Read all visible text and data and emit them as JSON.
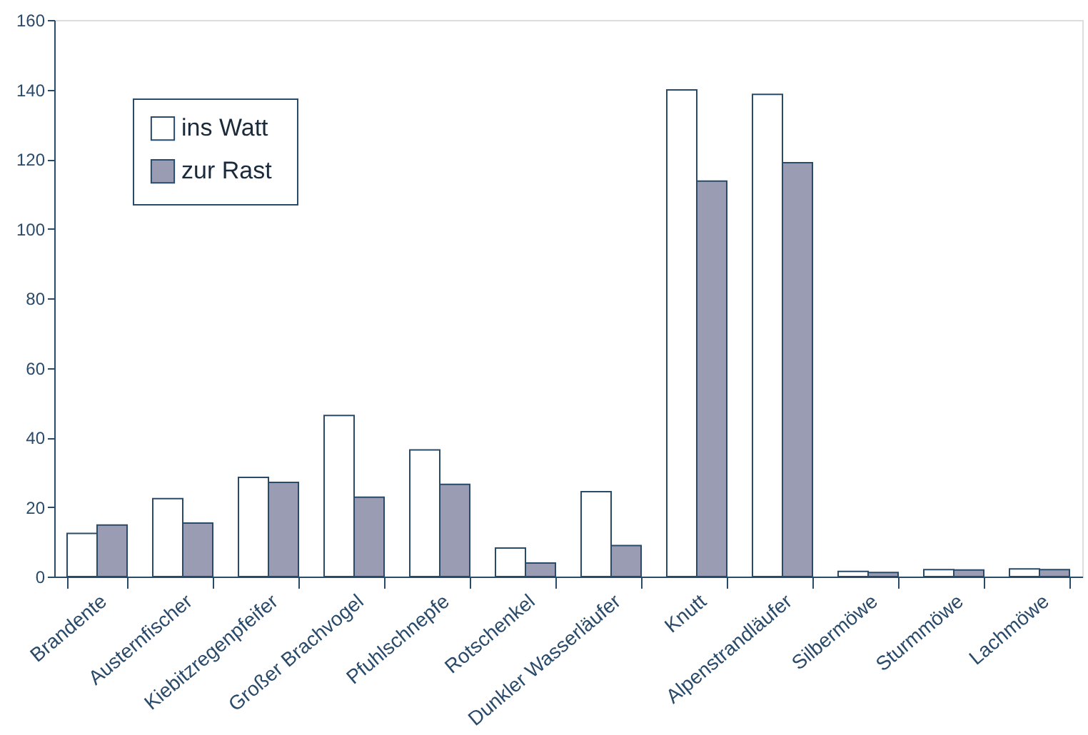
{
  "chart_data": {
    "type": "bar",
    "categories": [
      "Brandente",
      "Austernfischer",
      "Kiebitzregenpfeifer",
      "Großer Brachvogel",
      "Pfuhlschnepfe",
      "Rotschenkel",
      "Dunkler Wasserläufer",
      "Knutt",
      "Alpenstrandläufer",
      "Silbermöwe",
      "Sturmmöwe",
      "Lachmöwe"
    ],
    "series": [
      {
        "name": "ins Watt",
        "color": "#ffffff",
        "values": [
          12.4,
          22.4,
          28.5,
          46.3,
          36.4,
          8.2,
          24.4,
          139.9,
          138.6,
          1.5,
          2,
          2.2
        ]
      },
      {
        "name": "zur  Rast",
        "color": "#9a9cb4",
        "values": [
          14.8,
          15.4,
          27.1,
          22.8,
          26.5,
          3.9,
          8.9,
          113.7,
          119,
          1.2,
          1.9,
          2
        ]
      }
    ],
    "ylim": [
      0,
      160
    ],
    "yticks": [
      0,
      20,
      40,
      60,
      80,
      100,
      120,
      140,
      160
    ],
    "grid": false,
    "legend": "top left"
  }
}
